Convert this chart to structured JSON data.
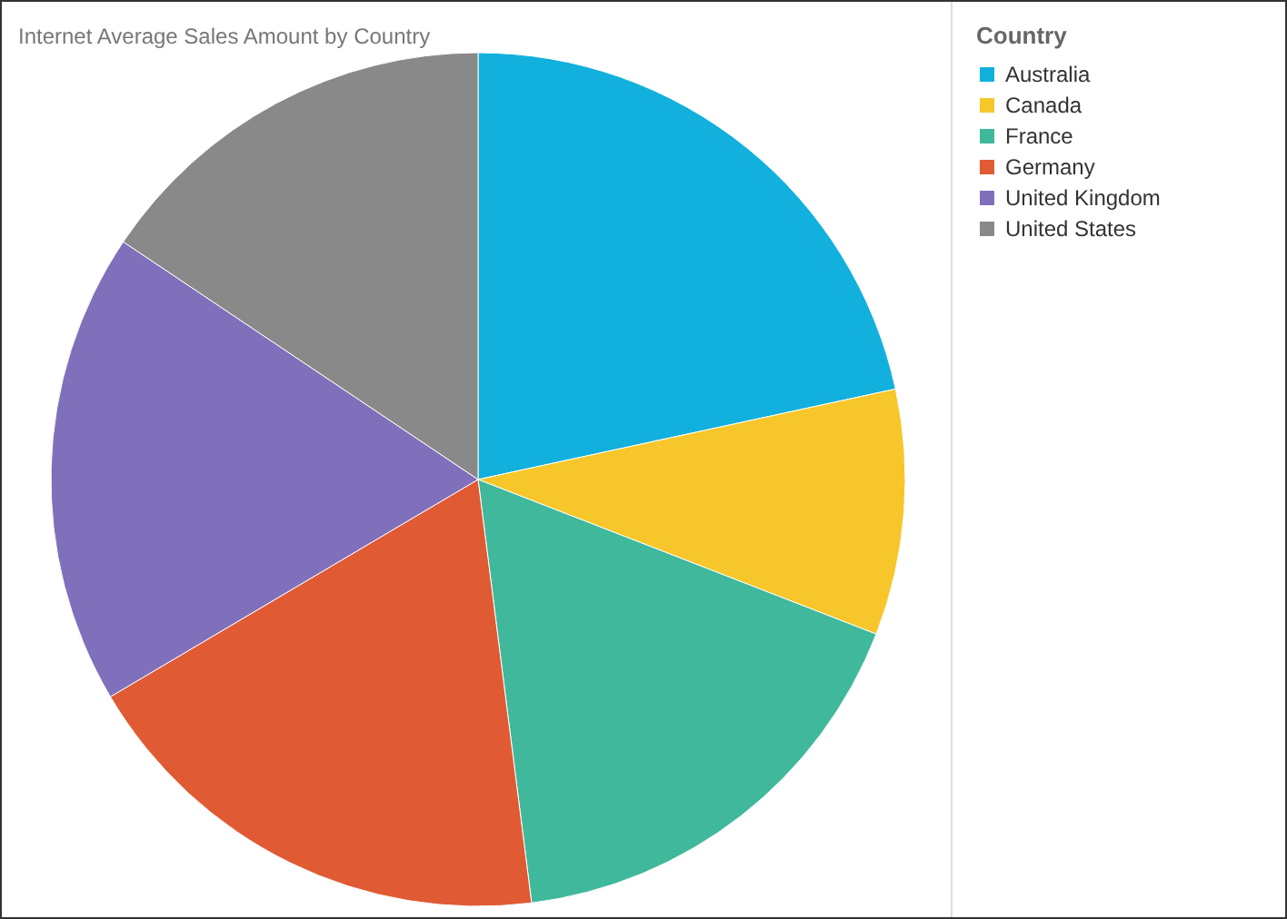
{
  "chart_data": {
    "type": "pie",
    "title": "Internet Average Sales Amount by Country",
    "legend_title": "Country",
    "legend": "top right",
    "categories": [
      "Australia",
      "Canada",
      "France",
      "Germany",
      "United Kingdom",
      "United States"
    ],
    "values": [
      21.6,
      9.3,
      17.1,
      18.5,
      17.9,
      15.6
    ],
    "colors": [
      "#12b0dc",
      "#f6c62a",
      "#3fb89c",
      "#e05a33",
      "#8070bb",
      "#898989"
    ]
  }
}
